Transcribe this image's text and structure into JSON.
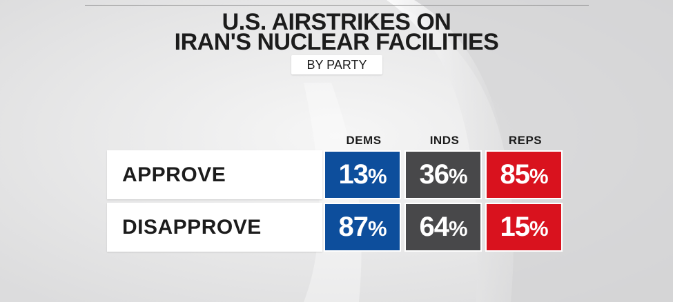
{
  "title_line_1": "U.S. AIRSTRIKES ON",
  "title_line_2": "IRAN'S NUCLEAR FACILITIES",
  "subtitle": "BY PARTY",
  "colors": {
    "dems": "#0d4e9c",
    "inds": "#48484a",
    "reps": "#d9121e",
    "background": "#e9e9ea"
  },
  "chart_data": {
    "type": "table",
    "title": "U.S. AIRSTRIKES ON IRAN'S NUCLEAR FACILITIES",
    "subtitle": "BY PARTY",
    "columns": [
      "DEMS",
      "INDS",
      "REPS"
    ],
    "rows": [
      {
        "label": "APPROVE",
        "values": [
          13,
          36,
          85
        ]
      },
      {
        "label": "DISAPPROVE",
        "values": [
          87,
          64,
          15
        ]
      }
    ],
    "unit": "%"
  }
}
